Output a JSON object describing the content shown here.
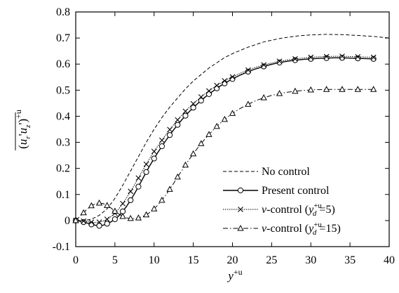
{
  "chart_data": {
    "type": "line",
    "title": "",
    "xlabel": "y+u",
    "ylabel": "(u_r' u_z')+u",
    "xlim": [
      0,
      40
    ],
    "ylim": [
      -0.1,
      0.8
    ],
    "x_ticks": [
      "0",
      "5",
      "10",
      "15",
      "20",
      "25",
      "30",
      "35",
      "40"
    ],
    "y_ticks": [
      "-0.1",
      "0",
      "0.1",
      "0.2",
      "0.3",
      "0.4",
      "0.5",
      "0.6",
      "0.7",
      "0.8"
    ],
    "grid": false,
    "legend_position": "bottom-right",
    "series": [
      {
        "name": "No control",
        "style": "dashed",
        "marker": "none",
        "x": [
          0,
          1,
          2,
          3,
          4,
          5,
          6,
          7,
          8,
          9,
          10,
          11,
          12,
          13,
          14,
          15,
          16,
          17,
          18,
          19,
          20,
          22,
          24,
          26,
          28,
          30,
          32,
          34,
          36,
          38,
          40
        ],
        "y": [
          0.0,
          0.0,
          0.005,
          0.02,
          0.045,
          0.085,
          0.135,
          0.19,
          0.245,
          0.3,
          0.35,
          0.395,
          0.435,
          0.47,
          0.505,
          0.535,
          0.56,
          0.585,
          0.605,
          0.625,
          0.64,
          0.665,
          0.685,
          0.698,
          0.707,
          0.712,
          0.714,
          0.713,
          0.71,
          0.706,
          0.7
        ]
      },
      {
        "name": "Present control",
        "style": "solid",
        "marker": "circle",
        "x": [
          0,
          0.5,
          1,
          1.5,
          2,
          2.5,
          3,
          3.5,
          4,
          4.5,
          5,
          5.5,
          6,
          6.5,
          7,
          7.5,
          8,
          8.5,
          9,
          9.5,
          10,
          10.5,
          11,
          11.5,
          12,
          12.5,
          13,
          13.5,
          14,
          14.5,
          15,
          15.5,
          16,
          16.5,
          17,
          17.5,
          18,
          18.5,
          19,
          19.5,
          20,
          21,
          22,
          23,
          24,
          25,
          26,
          27,
          28,
          29,
          30,
          31,
          32,
          33,
          34,
          35,
          36,
          37,
          38
        ],
        "y": [
          0.0,
          -0.002,
          -0.006,
          -0.01,
          -0.015,
          -0.018,
          -0.02,
          -0.018,
          -0.012,
          -0.005,
          0.005,
          0.018,
          0.035,
          0.055,
          0.078,
          0.103,
          0.13,
          0.158,
          0.186,
          0.213,
          0.238,
          0.262,
          0.285,
          0.307,
          0.328,
          0.348,
          0.367,
          0.385,
          0.402,
          0.418,
          0.433,
          0.447,
          0.46,
          0.473,
          0.485,
          0.496,
          0.507,
          0.517,
          0.526,
          0.535,
          0.543,
          0.558,
          0.571,
          0.582,
          0.591,
          0.599,
          0.606,
          0.611,
          0.615,
          0.618,
          0.62,
          0.622,
          0.623,
          0.624,
          0.624,
          0.623,
          0.622,
          0.621,
          0.62
        ]
      },
      {
        "name": "v-control (y_d^{+u}=5)",
        "style": "dotted",
        "marker": "x",
        "x": [
          0,
          0.5,
          1,
          1.5,
          2,
          2.5,
          3,
          3.5,
          4,
          4.5,
          5,
          5.5,
          6,
          6.5,
          7,
          7.5,
          8,
          8.5,
          9,
          9.5,
          10,
          10.5,
          11,
          11.5,
          12,
          12.5,
          13,
          13.5,
          14,
          14.5,
          15,
          15.5,
          16,
          16.5,
          17,
          17.5,
          18,
          18.5,
          19,
          19.5,
          20,
          21,
          22,
          23,
          24,
          25,
          26,
          27,
          28,
          29,
          30,
          31,
          32,
          33,
          34,
          35,
          36,
          37,
          38
        ],
        "y": [
          0.0,
          0.0,
          -0.002,
          -0.004,
          -0.006,
          -0.007,
          -0.006,
          -0.002,
          0.005,
          0.015,
          0.028,
          0.045,
          0.065,
          0.088,
          0.112,
          0.137,
          0.163,
          0.19,
          0.216,
          0.241,
          0.265,
          0.287,
          0.308,
          0.329,
          0.349,
          0.368,
          0.386,
          0.403,
          0.419,
          0.434,
          0.448,
          0.461,
          0.474,
          0.486,
          0.497,
          0.508,
          0.518,
          0.527,
          0.536,
          0.544,
          0.551,
          0.565,
          0.577,
          0.588,
          0.597,
          0.604,
          0.611,
          0.616,
          0.62,
          0.623,
          0.626,
          0.628,
          0.629,
          0.63,
          0.63,
          0.629,
          0.628,
          0.627,
          0.626
        ]
      },
      {
        "name": "v-control (y_d^{+u}=15)",
        "style": "dashdot",
        "marker": "triangle",
        "x": [
          0,
          0.5,
          1,
          1.5,
          2,
          2.5,
          3,
          3.5,
          4,
          4.5,
          5,
          5.5,
          6,
          6.5,
          7,
          7.5,
          8,
          8.5,
          9,
          9.5,
          10,
          10.5,
          11,
          11.5,
          12,
          12.5,
          13,
          13.5,
          14,
          14.5,
          15,
          15.5,
          16,
          16.5,
          17,
          17.5,
          18,
          18.5,
          19,
          19.5,
          20,
          21,
          22,
          23,
          24,
          25,
          26,
          27,
          28,
          29,
          30,
          31,
          32,
          33,
          34,
          35,
          36,
          37,
          38
        ],
        "y": [
          0.0,
          0.015,
          0.03,
          0.045,
          0.057,
          0.064,
          0.067,
          0.065,
          0.058,
          0.048,
          0.036,
          0.025,
          0.016,
          0.01,
          0.008,
          0.008,
          0.01,
          0.015,
          0.022,
          0.032,
          0.045,
          0.06,
          0.078,
          0.098,
          0.12,
          0.143,
          0.167,
          0.19,
          0.213,
          0.235,
          0.256,
          0.276,
          0.295,
          0.313,
          0.33,
          0.346,
          0.361,
          0.375,
          0.388,
          0.4,
          0.411,
          0.43,
          0.446,
          0.46,
          0.471,
          0.48,
          0.487,
          0.492,
          0.496,
          0.499,
          0.501,
          0.502,
          0.503,
          0.503,
          0.503,
          0.503,
          0.503,
          0.503,
          0.503
        ]
      }
    ]
  },
  "legend": [
    {
      "style": "dashed",
      "marker": "none",
      "label_parts": [
        {
          "t": "No control",
          "i": false
        }
      ]
    },
    {
      "style": "solid",
      "marker": "circle",
      "label_parts": [
        {
          "t": "Present control",
          "i": false
        }
      ]
    },
    {
      "style": "dotted",
      "marker": "x",
      "label_parts": [
        {
          "t": "v",
          "i": true
        },
        {
          "t": "-control (",
          "i": false
        },
        {
          "t": "y",
          "i": true
        },
        {
          "t": "+u",
          "i": false,
          "sup": true
        },
        {
          "t": "d",
          "i": true,
          "sub": true
        },
        {
          "t": "=5)",
          "i": false
        }
      ]
    },
    {
      "style": "dashdot",
      "marker": "triangle",
      "label_parts": [
        {
          "t": "v",
          "i": true
        },
        {
          "t": "-control (",
          "i": false
        },
        {
          "t": "y",
          "i": true
        },
        {
          "t": "+u",
          "i": false,
          "sup": true
        },
        {
          "t": "d",
          "i": true,
          "sub": true
        },
        {
          "t": "=15)",
          "i": false
        }
      ]
    }
  ],
  "colors": {
    "line": "#000000",
    "background": "#ffffff"
  }
}
